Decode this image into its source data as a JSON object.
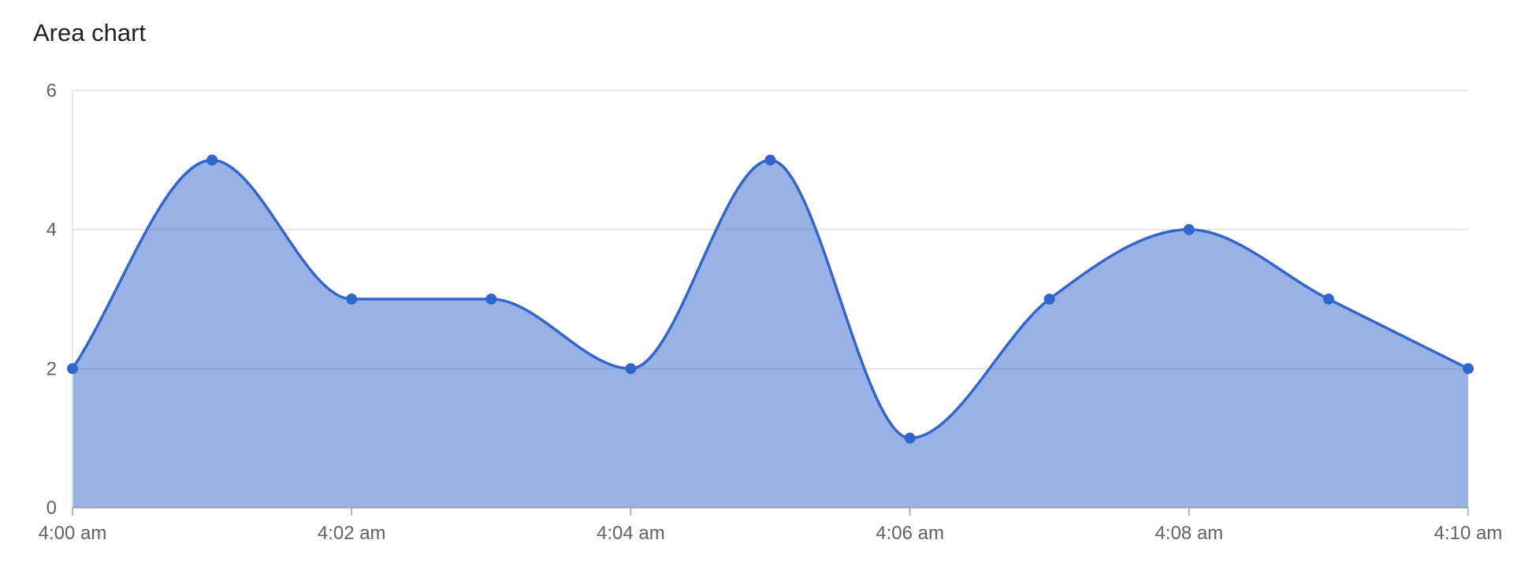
{
  "chart_data": {
    "type": "area",
    "title": "Area chart",
    "xlabel": "",
    "ylabel": "",
    "x": [
      "4:00 am",
      "4:01 am",
      "4:02 am",
      "4:03 am",
      "4:04 am",
      "4:05 am",
      "4:06 am",
      "4:07 am",
      "4:08 am",
      "4:09 am",
      "4:10 am"
    ],
    "x_tick_labels": [
      "4:00 am",
      "4:02 am",
      "4:04 am",
      "4:06 am",
      "4:08 am",
      "4:10 am"
    ],
    "series": [
      {
        "values": [
          2,
          5,
          3,
          3,
          2,
          5,
          1,
          3,
          4,
          3,
          2
        ]
      }
    ],
    "ylim": [
      0,
      6
    ],
    "y_ticks": [
      0,
      2,
      4,
      6
    ],
    "grid": true,
    "smooth": true,
    "colors": {
      "line": "#3366cc",
      "fill": "#3366cc",
      "grid": "#e0e0e0",
      "axis": "#9e9e9e",
      "text": "#5f6368"
    }
  }
}
